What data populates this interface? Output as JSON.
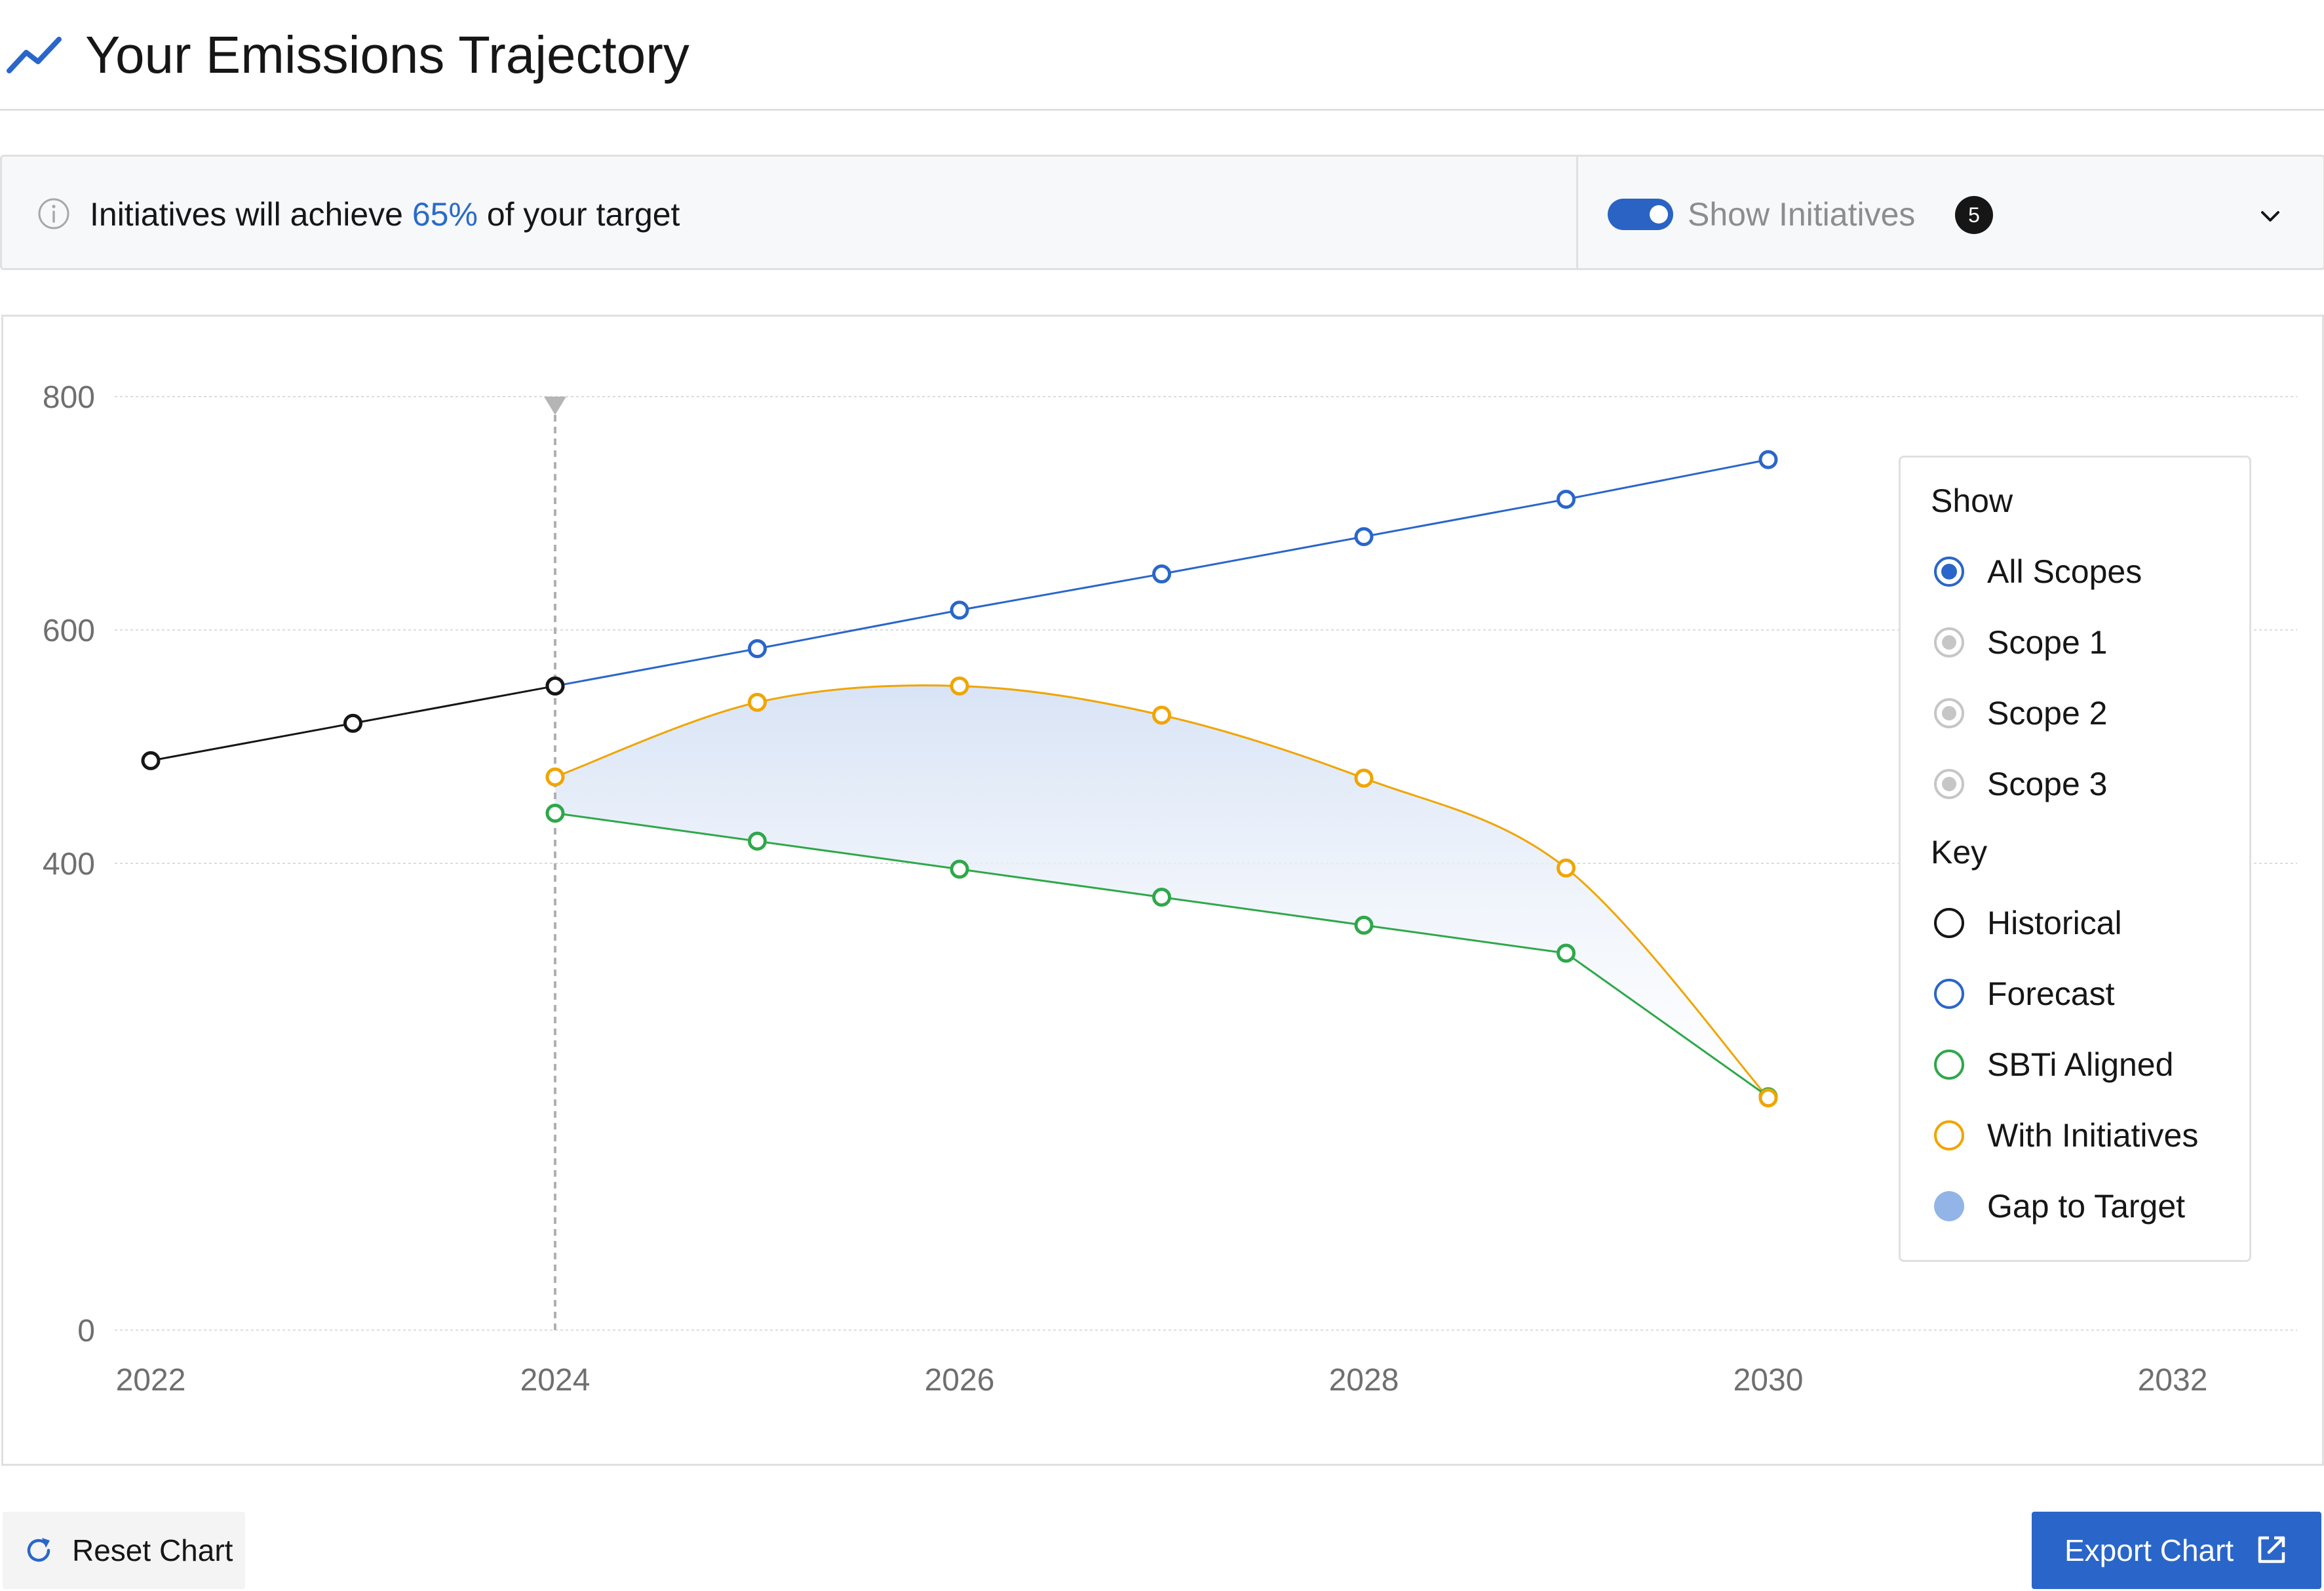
{
  "header": {
    "title": "Your Emissions Trajectory",
    "icon": "trend-line-icon"
  },
  "infobar": {
    "message_prefix": "Initiatives will achieve ",
    "percent": "65%",
    "message_suffix": " of your target",
    "toggle_label": "Show Initiatives",
    "toggle_on": true,
    "count": "5"
  },
  "legend": {
    "show_title": "Show",
    "scopes": [
      {
        "label": "All Scopes",
        "selected": true
      },
      {
        "label": "Scope 1",
        "selected": false
      },
      {
        "label": "Scope 2",
        "selected": false
      },
      {
        "label": "Scope 3",
        "selected": false
      }
    ],
    "key_title": "Key",
    "key": [
      {
        "label": "Historical",
        "color": "#161616",
        "kind": "ring"
      },
      {
        "label": "Forecast",
        "color": "#2a66c9",
        "kind": "ring"
      },
      {
        "label": "SBTi Aligned",
        "color": "#2ea84a",
        "kind": "ring"
      },
      {
        "label": "With Initiatives",
        "color": "#f0a500",
        "kind": "ring"
      },
      {
        "label": "Gap to Target",
        "color": "#93b4e6",
        "kind": "dot"
      }
    ]
  },
  "buttons": {
    "reset": "Reset Chart",
    "export": "Export Chart"
  },
  "chart_data": {
    "type": "line",
    "xlim": [
      2022,
      2032
    ],
    "ylim": [
      0,
      800
    ],
    "xticks": [
      "2022",
      "2024",
      "2026",
      "2028",
      "2030",
      "2032"
    ],
    "yticks": [
      "0",
      "400",
      "600",
      "800"
    ],
    "ytick_values": [
      0,
      400,
      600,
      800
    ],
    "current_year": 2024,
    "grid": true,
    "legend_position": "right",
    "series": [
      {
        "name": "Historical",
        "color": "#161616",
        "x": [
          2022,
          2023,
          2024
        ],
        "values": [
          488,
          520,
          552
        ]
      },
      {
        "name": "Forecast",
        "color": "#2a66c9",
        "x": [
          2024,
          2025,
          2026,
          2027,
          2028,
          2029,
          2030
        ],
        "values": [
          552,
          584,
          617,
          648,
          680,
          712,
          746
        ]
      },
      {
        "name": "With Initiatives",
        "color": "#f0a500",
        "smooth": true,
        "x": [
          2024,
          2025,
          2026,
          2027,
          2028,
          2029,
          2030
        ],
        "values": [
          474,
          538,
          552,
          527,
          473,
          396,
          199
        ]
      },
      {
        "name": "SBTi Aligned",
        "color": "#2ea84a",
        "x": [
          2024,
          2025,
          2026,
          2027,
          2028,
          2029,
          2030
        ],
        "values": [
          443,
          419,
          395,
          371,
          347,
          323,
          200
        ]
      }
    ]
  }
}
